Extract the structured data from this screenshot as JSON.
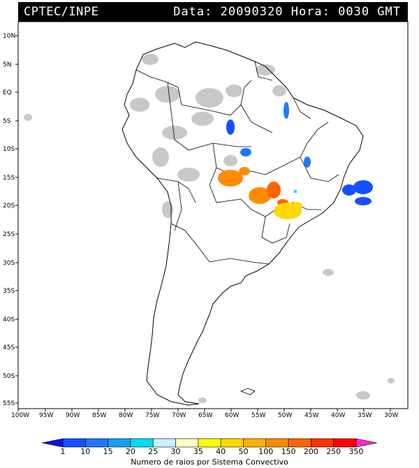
{
  "header": {
    "org": "CPTEC/INPE",
    "date_time": "Data: 20090320 Hora: 0030 GMT"
  },
  "map": {
    "lat_labels": [
      "10N",
      "5N",
      "EQ",
      "5S",
      "10S",
      "15S",
      "20S",
      "25S",
      "30S",
      "35S",
      "40S",
      "45S",
      "50S",
      "55S"
    ],
    "lon_labels": [
      "100W",
      "95W",
      "90W",
      "85W",
      "80W",
      "75W",
      "70W",
      "65W",
      "60W",
      "55W",
      "50W",
      "45W",
      "40W",
      "35W",
      "30W"
    ],
    "cloud_color": "#c8c8c8"
  },
  "legend": {
    "title": "Numero de raios por Sistema Convectivo",
    "ticks": [
      "1",
      "10",
      "15",
      "20",
      "25",
      "30",
      "35",
      "40",
      "50",
      "100",
      "150",
      "200",
      "250",
      "350"
    ],
    "colors": [
      "#1010e0",
      "#1450ff",
      "#1e78ff",
      "#14a0f0",
      "#00dcf0",
      "#c8f0ff",
      "#ffffc0",
      "#ffff00",
      "#ffd800",
      "#ffb000",
      "#ff8c00",
      "#ff6400",
      "#ff3200",
      "#ff0000",
      "#ff28c8"
    ]
  }
}
